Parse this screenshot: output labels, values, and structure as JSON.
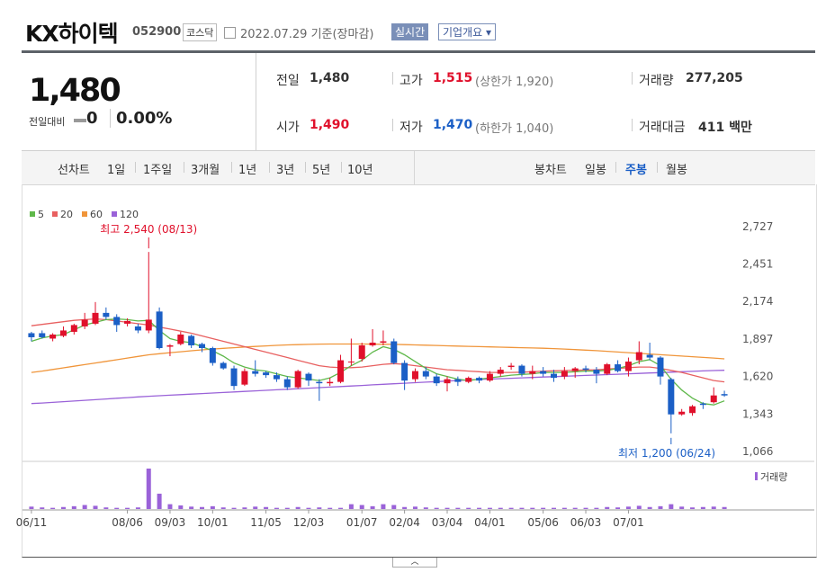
{
  "header": {
    "name": "KX하이텍",
    "code": "052900",
    "market": "코스닥",
    "date": "2022.07.29 기준(장마감)",
    "realtime_label": "실시간",
    "overview_label": "기업개요 ▾"
  },
  "quote": {
    "price": "1,480",
    "change_label": "전일대비",
    "change": "0",
    "change_pct": "0.00%",
    "prev_close_label": "전일",
    "prev_close": "1,480",
    "high_label": "고가",
    "high": "1,515",
    "upper_limit": "(상한가 1,920)",
    "volume_label": "거래량",
    "volume": "277,205",
    "open_label": "시가",
    "open": "1,490",
    "low_label": "저가",
    "low": "1,470",
    "lower_limit": "(하한가 1,040)",
    "value_label": "거래대금",
    "value": "411 백만"
  },
  "tabs": {
    "line_label": "선차트",
    "periods": [
      "1일",
      "1주일",
      "3개월",
      "1년",
      "3년",
      "5년",
      "10년"
    ],
    "candle_label": "봉차트",
    "candles": [
      "일봉",
      "주봉",
      "월봉"
    ],
    "selected_candle": "주봉"
  },
  "colors": {
    "up": "#e0102b",
    "down": "#1b5fc6",
    "ma5": "#5fb84a",
    "ma20": "#e86060",
    "ma60": "#f0953a",
    "ma120": "#9a62d8",
    "volume": "#9a62d8"
  },
  "chart_data": {
    "type": "candlestick",
    "legend": [
      {
        "name": "5",
        "color": "#5fb84a"
      },
      {
        "name": "20",
        "color": "#e86060"
      },
      {
        "name": "60",
        "color": "#f0953a"
      },
      {
        "name": "120",
        "color": "#9a62d8"
      }
    ],
    "y_ticks": [
      "2,727",
      "2,451",
      "2,174",
      "1,897",
      "1,620",
      "1,343",
      "1,066"
    ],
    "ylim": [
      1066,
      2727
    ],
    "x_ticks": [
      "06/11",
      "08/06",
      "09/03",
      "10/01",
      "11/05",
      "12/03",
      "01/07",
      "02/04",
      "03/04",
      "04/01",
      "05/06",
      "06/03",
      "07/01"
    ],
    "max_annotation": "최고 2,540 (08/13)",
    "min_annotation": "최저 1,200 (06/24)",
    "volume_label": "거래량",
    "candles": [
      [
        1940,
        1910,
        1950,
        1880
      ],
      [
        1940,
        1910,
        1960,
        1900
      ],
      [
        1900,
        1930,
        1940,
        1880
      ],
      [
        1920,
        1960,
        1990,
        1910
      ],
      [
        1950,
        2000,
        2010,
        1930
      ],
      [
        1990,
        2040,
        2090,
        1970
      ],
      [
        2010,
        2090,
        2170,
        2000
      ],
      [
        2090,
        2060,
        2130,
        2040
      ],
      [
        2060,
        2000,
        2080,
        1950
      ],
      [
        2010,
        2030,
        2050,
        1990
      ],
      [
        1990,
        1960,
        2010,
        1940
      ],
      [
        1960,
        2040,
        2540,
        1940
      ],
      [
        2100,
        1830,
        2130,
        1820
      ],
      [
        1840,
        1850,
        1860,
        1770
      ],
      [
        1860,
        1930,
        1950,
        1850
      ],
      [
        1920,
        1850,
        1930,
        1830
      ],
      [
        1860,
        1830,
        1870,
        1800
      ],
      [
        1830,
        1720,
        1840,
        1700
      ],
      [
        1720,
        1680,
        1730,
        1670
      ],
      [
        1680,
        1550,
        1700,
        1520
      ],
      [
        1560,
        1660,
        1680,
        1550
      ],
      [
        1660,
        1640,
        1740,
        1620
      ],
      [
        1650,
        1630,
        1660,
        1610
      ],
      [
        1630,
        1600,
        1650,
        1580
      ],
      [
        1600,
        1540,
        1620,
        1520
      ],
      [
        1540,
        1660,
        1670,
        1530
      ],
      [
        1640,
        1590,
        1650,
        1550
      ],
      [
        1580,
        1570,
        1600,
        1440
      ],
      [
        1570,
        1580,
        1610,
        1550
      ],
      [
        1580,
        1740,
        1780,
        1570
      ],
      [
        1730,
        1730,
        1900,
        1700
      ],
      [
        1750,
        1850,
        1870,
        1730
      ],
      [
        1850,
        1870,
        1970,
        1840
      ],
      [
        1870,
        1880,
        1960,
        1850
      ],
      [
        1880,
        1720,
        1900,
        1710
      ],
      [
        1720,
        1590,
        1740,
        1520
      ],
      [
        1600,
        1660,
        1680,
        1580
      ],
      [
        1660,
        1620,
        1690,
        1600
      ],
      [
        1620,
        1570,
        1640,
        1550
      ],
      [
        1570,
        1600,
        1620,
        1510
      ],
      [
        1600,
        1580,
        1620,
        1550
      ],
      [
        1580,
        1610,
        1620,
        1570
      ],
      [
        1610,
        1590,
        1620,
        1570
      ],
      [
        1590,
        1640,
        1660,
        1580
      ],
      [
        1640,
        1670,
        1690,
        1620
      ],
      [
        1690,
        1700,
        1720,
        1670
      ],
      [
        1700,
        1640,
        1710,
        1620
      ],
      [
        1640,
        1660,
        1700,
        1600
      ],
      [
        1660,
        1640,
        1690,
        1620
      ],
      [
        1640,
        1610,
        1670,
        1580
      ],
      [
        1620,
        1660,
        1690,
        1600
      ],
      [
        1660,
        1680,
        1690,
        1610
      ],
      [
        1680,
        1670,
        1700,
        1650
      ],
      [
        1670,
        1640,
        1690,
        1570
      ],
      [
        1640,
        1710,
        1720,
        1630
      ],
      [
        1710,
        1660,
        1740,
        1650
      ],
      [
        1660,
        1730,
        1760,
        1620
      ],
      [
        1740,
        1800,
        1880,
        1710
      ],
      [
        1780,
        1760,
        1870,
        1740
      ],
      [
        1760,
        1620,
        1770,
        1560
      ],
      [
        1600,
        1340,
        1610,
        1200
      ],
      [
        1340,
        1360,
        1380,
        1330
      ],
      [
        1350,
        1400,
        1410,
        1330
      ],
      [
        1420,
        1410,
        1430,
        1380
      ],
      [
        1430,
        1480,
        1540,
        1420
      ],
      [
        1490,
        1480,
        1515,
        1470
      ]
    ],
    "ma5": [
      1880,
      1905,
      1920,
      1930,
      1965,
      2000,
      2020,
      2040,
      2045,
      2040,
      2030,
      2035,
      1960,
      1900,
      1880,
      1870,
      1840,
      1810,
      1770,
      1720,
      1690,
      1670,
      1660,
      1640,
      1620,
      1610,
      1600,
      1590,
      1610,
      1650,
      1700,
      1740,
      1800,
      1840,
      1820,
      1780,
      1730,
      1680,
      1640,
      1620,
      1600,
      1590,
      1600,
      1610,
      1620,
      1630,
      1635,
      1640,
      1650,
      1650,
      1650,
      1655,
      1660,
      1660,
      1665,
      1680,
      1700,
      1730,
      1745,
      1700,
      1600,
      1520,
      1460,
      1420,
      1410,
      1440
    ],
    "ma20": [
      1995,
      2005,
      2015,
      2025,
      2035,
      2040,
      2045,
      2040,
      2030,
      2020,
      2010,
      2000,
      1985,
      1970,
      1955,
      1940,
      1920,
      1900,
      1880,
      1860,
      1840,
      1820,
      1800,
      1780,
      1760,
      1740,
      1720,
      1700,
      1690,
      1685,
      1685,
      1690,
      1700,
      1710,
      1715,
      1710,
      1700,
      1690,
      1680,
      1670,
      1665,
      1660,
      1655,
      1650,
      1650,
      1650,
      1652,
      1655,
      1660,
      1662,
      1664,
      1666,
      1668,
      1670,
      1675,
      1680,
      1685,
      1690,
      1690,
      1680,
      1665,
      1650,
      1630,
      1610,
      1590,
      1580
    ],
    "ma60": [
      1650,
      1660,
      1672,
      1684,
      1696,
      1708,
      1720,
      1732,
      1744,
      1756,
      1768,
      1780,
      1788,
      1796,
      1803,
      1810,
      1817,
      1823,
      1828,
      1833,
      1838,
      1842,
      1846,
      1850,
      1853,
      1855,
      1857,
      1859,
      1860,
      1860,
      1860,
      1860,
      1859,
      1858,
      1857,
      1855,
      1853,
      1851,
      1849,
      1847,
      1845,
      1843,
      1841,
      1839,
      1837,
      1835,
      1833,
      1831,
      1829,
      1826,
      1823,
      1819,
      1815,
      1811,
      1806,
      1801,
      1796,
      1791,
      1786,
      1781,
      1776,
      1771,
      1766,
      1761,
      1756,
      1750
    ],
    "ma120": [
      1420,
      1424,
      1429,
      1434,
      1439,
      1444,
      1449,
      1454,
      1459,
      1464,
      1469,
      1474,
      1478,
      1482,
      1486,
      1490,
      1494,
      1498,
      1502,
      1506,
      1510,
      1514,
      1518,
      1522,
      1526,
      1530,
      1534,
      1538,
      1542,
      1546,
      1550,
      1554,
      1558,
      1562,
      1566,
      1570,
      1574,
      1578,
      1582,
      1586,
      1590,
      1594,
      1598,
      1601,
      1604,
      1607,
      1610,
      1613,
      1616,
      1619,
      1622,
      1625,
      1628,
      1631,
      1634,
      1637,
      1640,
      1643,
      1646,
      1649,
      1652,
      1655,
      1658,
      1661,
      1664,
      1666
    ],
    "volume": [
      0.06,
      0.04,
      0.03,
      0.05,
      0.07,
      0.1,
      0.08,
      0.04,
      0.03,
      0.03,
      0.04,
      1.0,
      0.38,
      0.12,
      0.09,
      0.06,
      0.05,
      0.07,
      0.04,
      0.03,
      0.04,
      0.06,
      0.05,
      0.03,
      0.03,
      0.05,
      0.03,
      0.04,
      0.03,
      0.03,
      0.12,
      0.1,
      0.07,
      0.12,
      0.1,
      0.05,
      0.06,
      0.04,
      0.03,
      0.03,
      0.03,
      0.03,
      0.03,
      0.03,
      0.03,
      0.03,
      0.03,
      0.03,
      0.03,
      0.03,
      0.03,
      0.03,
      0.03,
      0.03,
      0.05,
      0.04,
      0.06,
      0.08,
      0.05,
      0.07,
      0.12,
      0.06,
      0.04,
      0.05,
      0.06,
      0.05
    ]
  }
}
